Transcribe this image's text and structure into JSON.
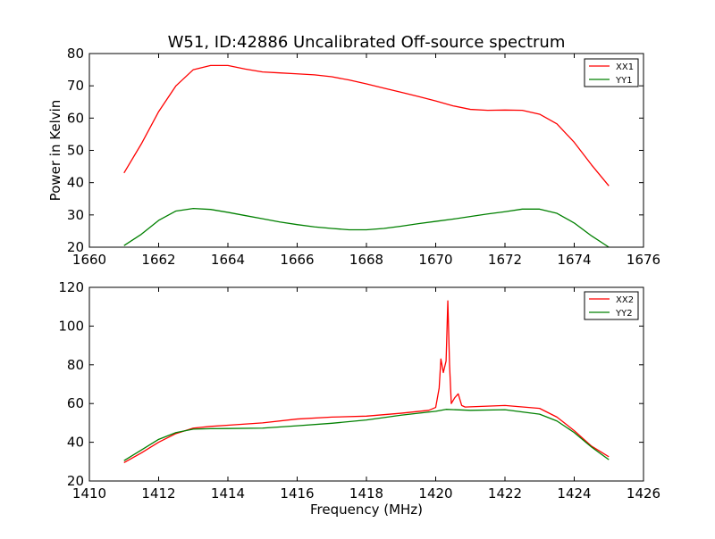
{
  "figure": {
    "title": "W51, ID:42886 Uncalibrated Off-source spectrum"
  },
  "chart_data": [
    {
      "type": "line",
      "title": "W51, ID:42886 Uncalibrated Off-source spectrum",
      "xlabel": "",
      "ylabel": "Power in Kelvin",
      "xlim": [
        1660,
        1676
      ],
      "ylim": [
        20,
        80
      ],
      "xticks": [
        "1660",
        "1662",
        "1664",
        "1666",
        "1668",
        "1670",
        "1672",
        "1674",
        "1676"
      ],
      "yticks": [
        "20",
        "30",
        "40",
        "50",
        "60",
        "70",
        "80"
      ],
      "grid": false,
      "legend_position": "top-right",
      "series": [
        {
          "name": "XX1",
          "color": "#ff0000",
          "x": [
            1661.0,
            1661.5,
            1662.0,
            1662.5,
            1663.0,
            1663.5,
            1664.0,
            1664.5,
            1665.0,
            1665.5,
            1666.0,
            1666.5,
            1667.0,
            1667.5,
            1668.0,
            1668.5,
            1669.0,
            1669.5,
            1670.0,
            1670.5,
            1671.0,
            1671.5,
            1672.0,
            1672.5,
            1673.0,
            1673.5,
            1674.0,
            1674.5,
            1675.0
          ],
          "y": [
            43,
            52,
            62,
            70,
            75,
            76.3,
            76.3,
            75.2,
            74.3,
            74.0,
            73.7,
            73.4,
            72.8,
            71.8,
            70.6,
            69.3,
            68.0,
            66.7,
            65.3,
            63.8,
            62.7,
            62.4,
            62.5,
            62.4,
            61.2,
            58.2,
            52.5,
            45.5,
            39
          ]
        },
        {
          "name": "YY1",
          "color": "#008000",
          "x": [
            1661.0,
            1661.5,
            1662.0,
            1662.5,
            1663.0,
            1663.5,
            1664.0,
            1664.5,
            1665.0,
            1665.5,
            1666.0,
            1666.5,
            1667.0,
            1667.5,
            1668.0,
            1668.5,
            1669.0,
            1669.5,
            1670.0,
            1670.5,
            1671.0,
            1671.5,
            1672.0,
            1672.5,
            1673.0,
            1673.5,
            1674.0,
            1674.5,
            1675.0
          ],
          "y": [
            20.5,
            24,
            28.3,
            31.2,
            32.0,
            31.7,
            30.8,
            29.8,
            28.8,
            27.8,
            27.0,
            26.3,
            25.8,
            25.4,
            25.4,
            25.8,
            26.5,
            27.3,
            28.0,
            28.7,
            29.5,
            30.3,
            31.0,
            31.8,
            31.8,
            30.5,
            27.5,
            23.5,
            20.0
          ]
        }
      ]
    },
    {
      "type": "line",
      "title": "",
      "xlabel": "Frequency (MHz)",
      "ylabel": "",
      "xlim": [
        1410,
        1426
      ],
      "ylim": [
        20,
        120
      ],
      "xticks": [
        "1410",
        "1412",
        "1414",
        "1416",
        "1418",
        "1420",
        "1422",
        "1424",
        "1426"
      ],
      "yticks": [
        "20",
        "40",
        "60",
        "80",
        "100",
        "120"
      ],
      "grid": false,
      "legend_position": "top-right",
      "series": [
        {
          "name": "XX2",
          "color": "#ff0000",
          "x": [
            1411.0,
            1411.5,
            1412.0,
            1412.5,
            1413.0,
            1413.5,
            1414.0,
            1415.0,
            1416.0,
            1417.0,
            1418.0,
            1419.0,
            1419.8,
            1420.0,
            1420.1,
            1420.15,
            1420.22,
            1420.3,
            1420.35,
            1420.4,
            1420.45,
            1420.55,
            1420.65,
            1420.75,
            1420.85,
            1421.0,
            1422.0,
            1423.0,
            1423.5,
            1424.0,
            1424.5,
            1425.0
          ],
          "y": [
            29.5,
            34.5,
            40.0,
            44.5,
            47.3,
            48.2,
            48.8,
            50.0,
            52.0,
            53.0,
            53.5,
            55.0,
            56.5,
            58.0,
            68.0,
            83.0,
            76.0,
            82.0,
            113.0,
            80.0,
            60.0,
            63.0,
            65.0,
            59.0,
            58.2,
            58.3,
            59.0,
            57.5,
            53.0,
            46.0,
            38.0,
            32.5
          ]
        },
        {
          "name": "YY2",
          "color": "#008000",
          "x": [
            1411.0,
            1411.5,
            1412.0,
            1412.5,
            1413.0,
            1413.5,
            1414.0,
            1415.0,
            1416.0,
            1417.0,
            1418.0,
            1419.0,
            1420.0,
            1420.3,
            1421.0,
            1422.0,
            1423.0,
            1423.5,
            1424.0,
            1424.5,
            1425.0
          ],
          "y": [
            30.5,
            36.0,
            41.5,
            45.0,
            46.8,
            47.0,
            47.1,
            47.3,
            48.5,
            49.8,
            51.5,
            54.0,
            56.0,
            57.0,
            56.5,
            56.8,
            54.5,
            51.0,
            45.0,
            37.5,
            31.0
          ]
        }
      ]
    }
  ]
}
